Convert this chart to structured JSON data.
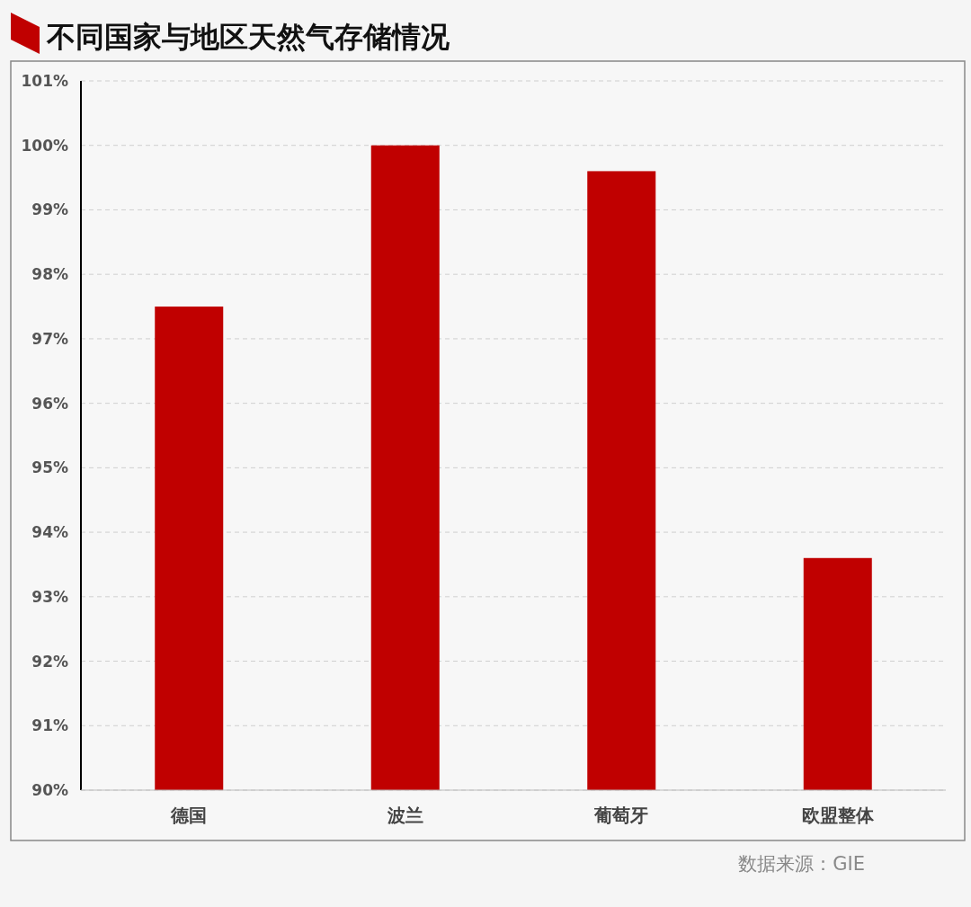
{
  "chart_data": {
    "type": "bar",
    "title": "不同国家与地区天然气存储情况",
    "categories": [
      "德国",
      "波兰",
      "葡萄牙",
      "欧盟整体"
    ],
    "values": [
      97.5,
      100,
      99.6,
      93.6
    ],
    "color": "#c00000",
    "ylim": [
      90,
      101
    ],
    "yticks": [
      {
        "value": 90,
        "label": "90%"
      },
      {
        "value": 91,
        "label": "91%"
      },
      {
        "value": 92,
        "label": "92%"
      },
      {
        "value": 93,
        "label": "93%"
      },
      {
        "value": 94,
        "label": "94%"
      },
      {
        "value": 95,
        "label": "95%"
      },
      {
        "value": 96,
        "label": "96%"
      },
      {
        "value": 97,
        "label": "97%"
      },
      {
        "value": 98,
        "label": "98%"
      },
      {
        "value": 99,
        "label": "99%"
      },
      {
        "value": 100,
        "label": "100%"
      },
      {
        "value": 101,
        "label": "101%"
      }
    ],
    "grid": "y",
    "annotations": [
      "数据来源：GIE"
    ]
  }
}
